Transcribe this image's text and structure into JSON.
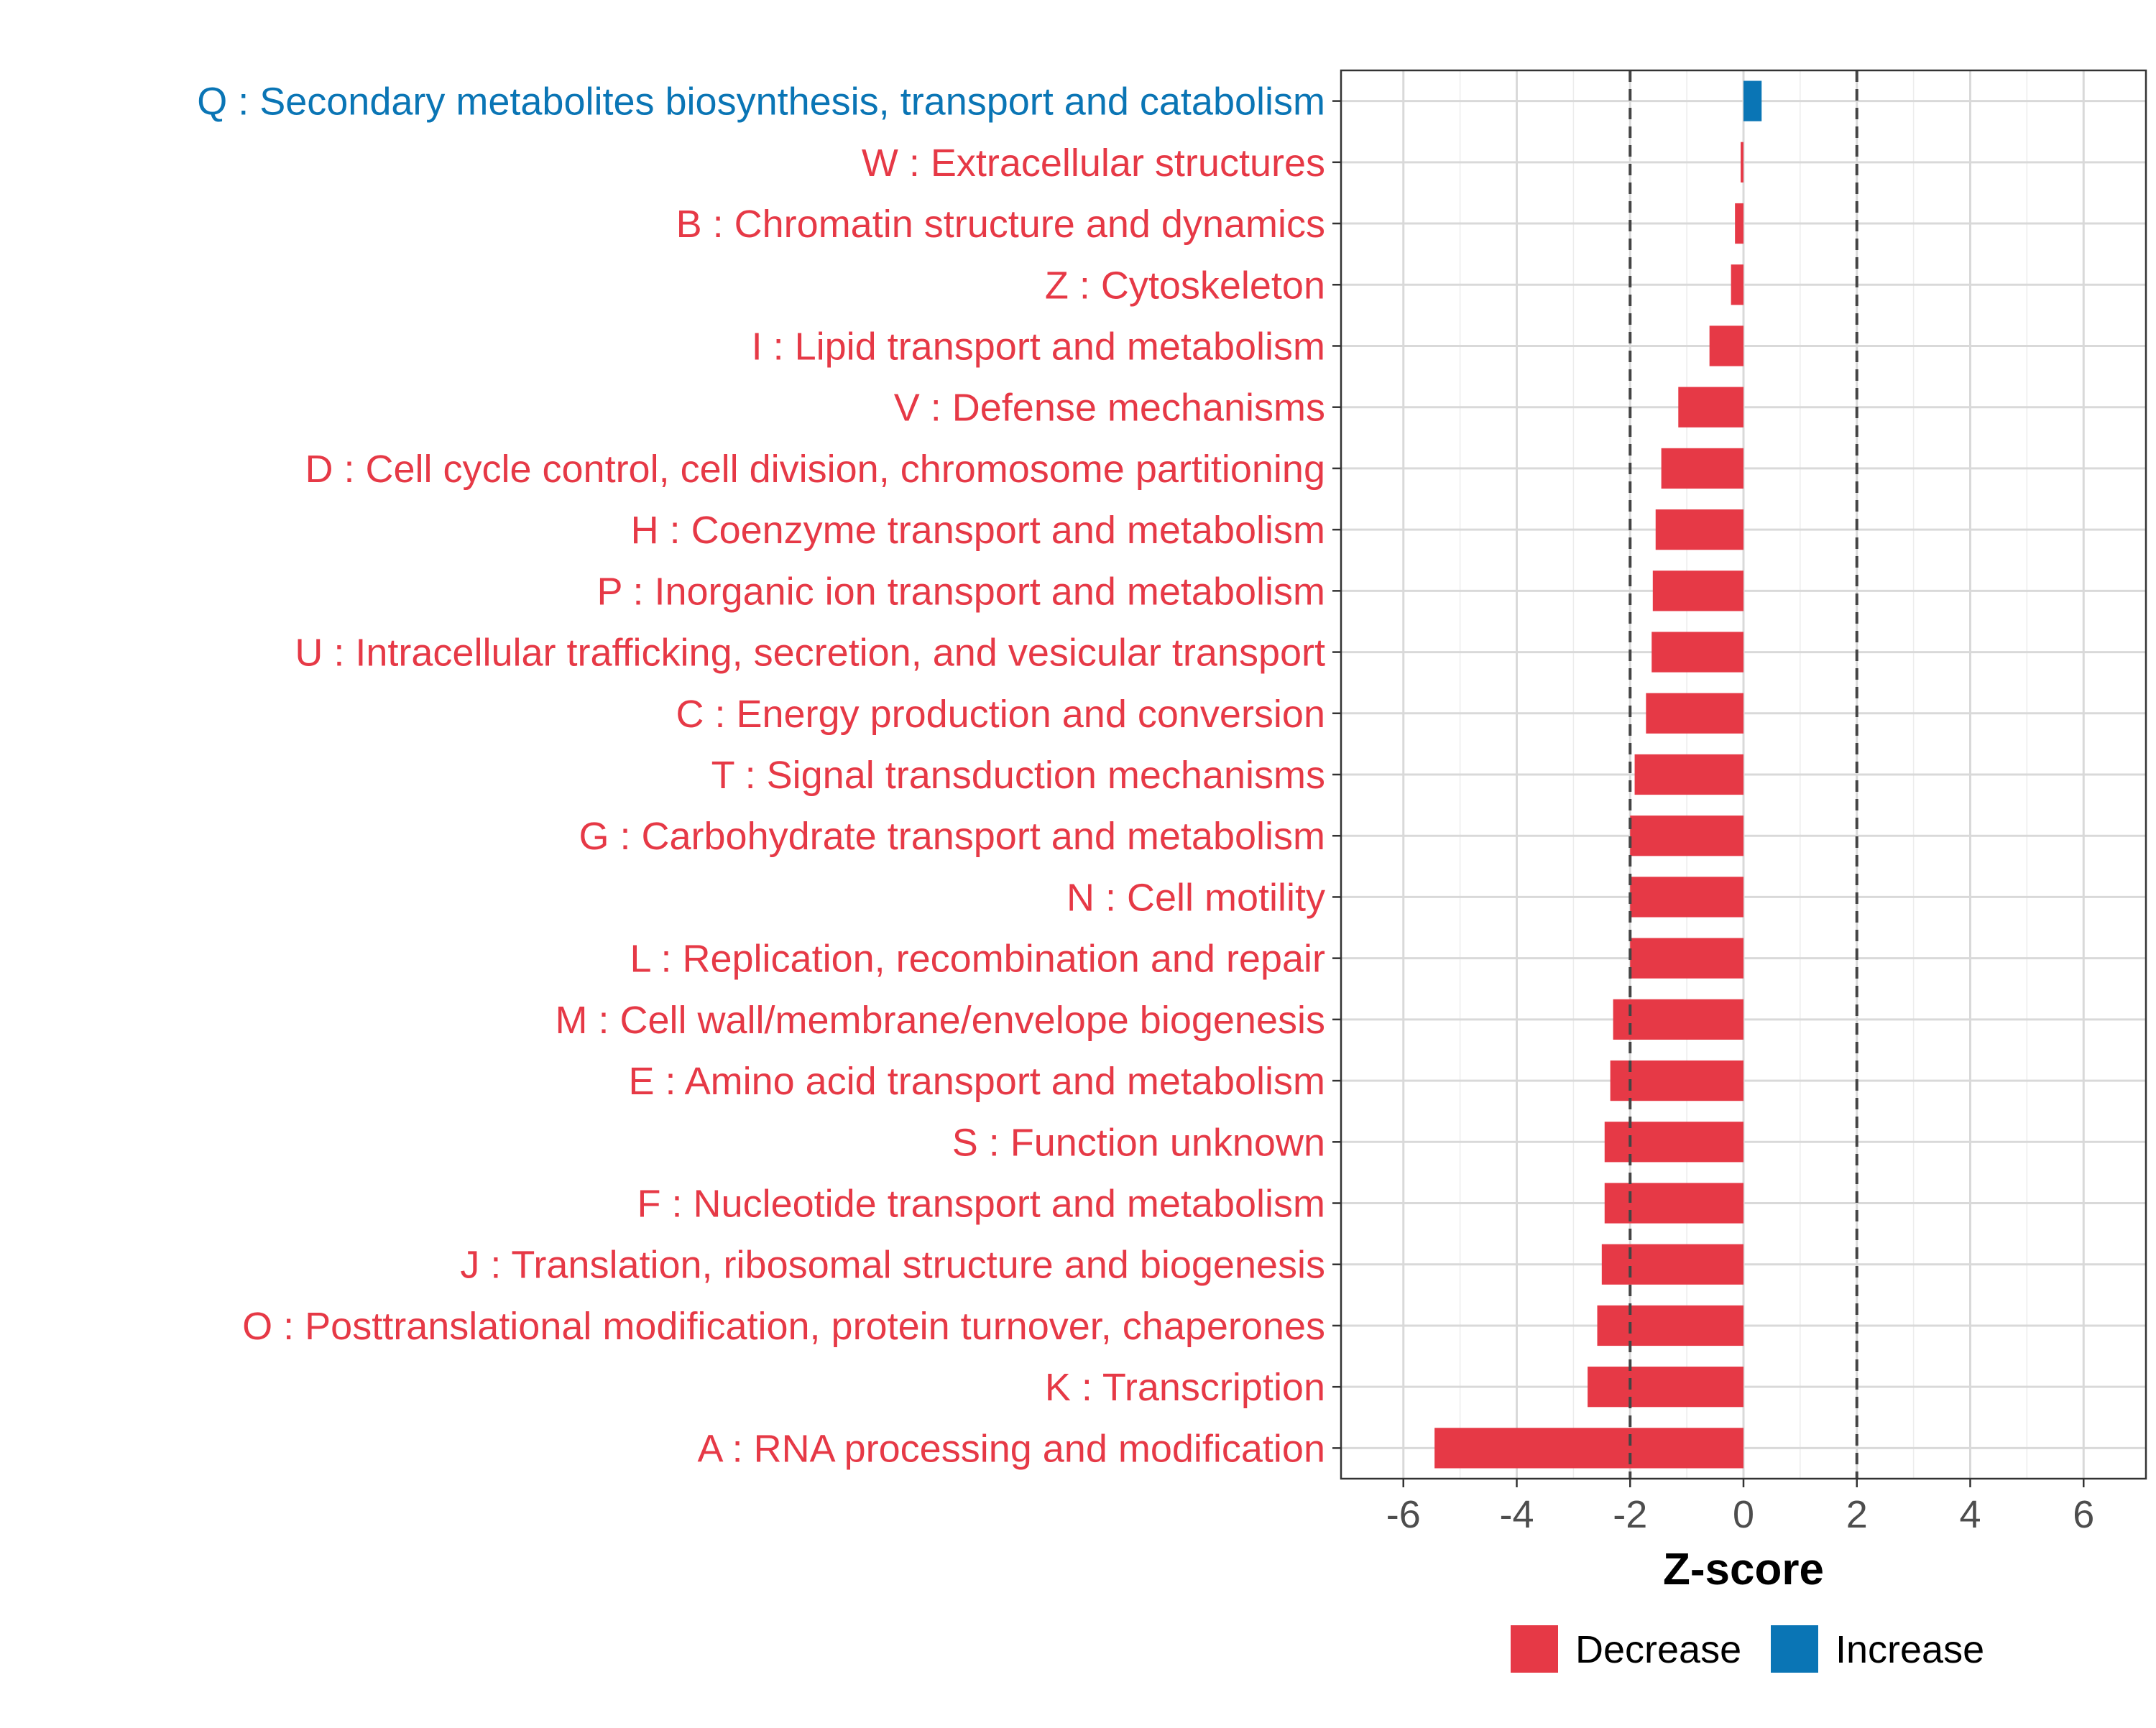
{
  "chart_data": {
    "type": "bar",
    "orientation": "horizontal",
    "title": "",
    "xlabel": "Z-score",
    "ylabel": "",
    "xlim": [
      -7.1,
      7.1
    ],
    "xticks": [
      -6,
      -4,
      -2,
      0,
      2,
      4,
      6
    ],
    "xtick_labels": [
      "-6",
      "-4",
      "-2",
      "0",
      "2",
      "4",
      "6"
    ],
    "threshold_lines": [
      -2,
      2
    ],
    "grid": true,
    "legend_position": "bottom",
    "legend": [
      {
        "name": "Decrease",
        "color": "#E63946"
      },
      {
        "name": "Increase",
        "color": "#0A75B5"
      }
    ],
    "colors": {
      "Decrease": "#E63946",
      "Increase": "#0A75B5"
    },
    "categories": [
      "Q : Secondary metabolites biosynthesis, transport and catabolism",
      "W : Extracellular structures",
      "B : Chromatin structure and dynamics",
      "Z : Cytoskeleton",
      "I : Lipid transport and metabolism",
      "V : Defense mechanisms",
      "D : Cell cycle control, cell division, chromosome partitioning",
      "H : Coenzyme transport and metabolism",
      "P : Inorganic ion transport and metabolism",
      "U : Intracellular trafficking, secretion, and vesicular transport",
      "C : Energy production and conversion",
      "T : Signal transduction mechanisms",
      "G : Carbohydrate transport and metabolism",
      "N : Cell motility",
      "L : Replication, recombination and repair",
      "M : Cell wall/membrane/envelope biogenesis",
      "E : Amino acid transport and metabolism",
      "S : Function unknown",
      "F : Nucleotide transport and metabolism",
      "J : Translation, ribosomal structure and biogenesis",
      "O : Posttranslational modification, protein turnover, chaperones",
      "K : Transcription",
      "A : RNA processing and modification"
    ],
    "values": [
      0.32,
      -0.05,
      -0.15,
      -0.22,
      -0.6,
      -1.15,
      -1.45,
      -1.55,
      -1.6,
      -1.62,
      -1.72,
      -1.92,
      -2.0,
      -2.0,
      -2.0,
      -2.3,
      -2.35,
      -2.45,
      -2.45,
      -2.5,
      -2.58,
      -2.75,
      -5.45
    ],
    "groups": [
      "Increase",
      "Decrease",
      "Decrease",
      "Decrease",
      "Decrease",
      "Decrease",
      "Decrease",
      "Decrease",
      "Decrease",
      "Decrease",
      "Decrease",
      "Decrease",
      "Decrease",
      "Decrease",
      "Decrease",
      "Decrease",
      "Decrease",
      "Decrease",
      "Decrease",
      "Decrease",
      "Decrease",
      "Decrease",
      "Decrease"
    ]
  }
}
